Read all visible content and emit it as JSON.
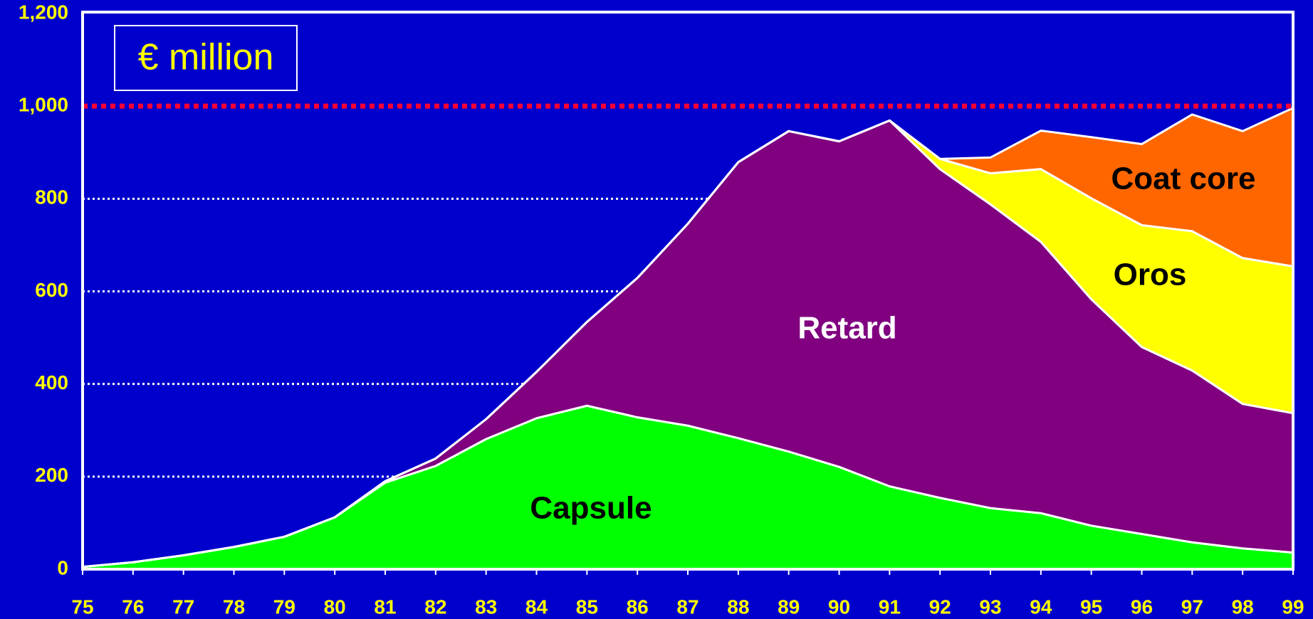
{
  "chart_data": {
    "type": "stacked_area",
    "annotation": "€ million",
    "categories": [
      "75",
      "76",
      "77",
      "78",
      "79",
      "80",
      "81",
      "82",
      "83",
      "84",
      "85",
      "86",
      "87",
      "88",
      "89",
      "90",
      "91",
      "92",
      "93",
      "94",
      "95",
      "96",
      "97",
      "98",
      "99"
    ],
    "series": [
      {
        "name": "Capsule",
        "color": "#00ff00",
        "values": [
          5,
          15,
          30,
          48,
          70,
          112,
          187,
          223,
          281,
          326,
          353,
          328,
          310,
          283,
          254,
          221,
          179,
          154,
          132,
          121,
          94,
          76,
          58,
          45,
          36
        ]
      },
      {
        "name": "Retard",
        "color": "#800080",
        "values": [
          0,
          0,
          0,
          0,
          0,
          0,
          3,
          16,
          43,
          100,
          181,
          301,
          436,
          596,
          692,
          703,
          790,
          710,
          656,
          586,
          489,
          404,
          371,
          312,
          301
        ]
      },
      {
        "name": "Oros",
        "color": "#ffff00",
        "values": [
          0,
          0,
          0,
          0,
          0,
          0,
          0,
          0,
          0,
          0,
          0,
          0,
          0,
          0,
          0,
          0,
          0,
          22,
          67,
          157,
          218,
          263,
          301,
          315,
          317
        ]
      },
      {
        "name": "Coat core",
        "color": "#ff6600",
        "values": [
          0,
          0,
          0,
          0,
          0,
          0,
          0,
          0,
          0,
          0,
          0,
          0,
          0,
          0,
          0,
          0,
          0,
          0,
          34,
          83,
          132,
          175,
          252,
          274,
          342
        ]
      }
    ],
    "reference_line": 1000,
    "ylim": [
      0,
      1200
    ],
    "yticks": [
      0,
      200,
      400,
      600,
      800,
      {
        "value": 1000,
        "label": "1,000"
      },
      {
        "value": 1200,
        "label": "1,200"
      }
    ],
    "grid": true
  }
}
